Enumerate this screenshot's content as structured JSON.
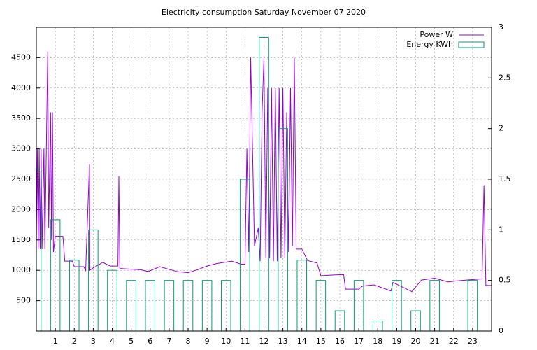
{
  "chart_data": {
    "type": "line_bar",
    "title": "Electricity consumption Saturday November 07 2020",
    "xlim": [
      0,
      24
    ],
    "xticks": [
      1,
      2,
      3,
      4,
      5,
      6,
      7,
      8,
      9,
      10,
      11,
      12,
      13,
      14,
      15,
      16,
      17,
      18,
      19,
      20,
      21,
      22,
      23
    ],
    "ylim": [
      0,
      5000
    ],
    "yticks": [
      500,
      1000,
      1500,
      2000,
      2500,
      3000,
      3500,
      4000,
      4500
    ],
    "y2lim": [
      0,
      3
    ],
    "y2ticks": [
      0,
      0.5,
      1,
      1.5,
      2,
      2.5,
      3
    ],
    "grid": true,
    "legend": "top-right",
    "series": [
      {
        "name": "Power W",
        "color": "#9400d3",
        "type": "line",
        "x": [
          0,
          0.05,
          0.1,
          0.15,
          0.2,
          0.25,
          0.3,
          0.4,
          0.45,
          0.6,
          0.65,
          0.75,
          0.8,
          0.85,
          0.9,
          1.0,
          1.4,
          1.5,
          1.9,
          2.0,
          2.5,
          2.6,
          2.8,
          2.82,
          3.0,
          3.5,
          3.9,
          4.3,
          4.35,
          4.4,
          5.5,
          5.9,
          6.5,
          7.4,
          8.0,
          8.5,
          9.0,
          9.5,
          10.3,
          10.8,
          11.0,
          11.1,
          11.2,
          11.3,
          11.5,
          11.7,
          11.8,
          11.9,
          12.0,
          12.1,
          12.2,
          12.3,
          12.4,
          12.5,
          12.6,
          12.7,
          12.8,
          12.9,
          13.0,
          13.1,
          13.2,
          13.3,
          13.4,
          13.5,
          13.6,
          13.7,
          14.0,
          14.3,
          14.8,
          15.0,
          15.5,
          16.2,
          16.3,
          17.0,
          17.2,
          17.8,
          18.7,
          18.8,
          19.2,
          19.8,
          20.3,
          21.0,
          21.7,
          22.3,
          23.5,
          23.6,
          23.65,
          23.7,
          24
        ],
        "values": [
          1400,
          3000,
          1350,
          3000,
          1350,
          3000,
          1350,
          3000,
          1350,
          4600,
          1700,
          3600,
          1500,
          3600,
          1300,
          1560,
          1560,
          1150,
          1150,
          1060,
          1060,
          1000,
          2750,
          1000,
          1040,
          1130,
          1070,
          1070,
          2550,
          1030,
          1010,
          980,
          1060,
          980,
          960,
          1010,
          1070,
          1110,
          1150,
          1100,
          1100,
          3000,
          1300,
          4500,
          1400,
          1700,
          1150,
          3600,
          4500,
          1200,
          4000,
          1200,
          4000,
          1150,
          4000,
          1150,
          4000,
          1200,
          4000,
          1200,
          3600,
          1300,
          4000,
          1400,
          4500,
          1350,
          1350,
          1160,
          1120,
          910,
          920,
          930,
          690,
          690,
          740,
          760,
          660,
          800,
          740,
          650,
          840,
          870,
          810,
          830,
          860,
          2400,
          1600,
          750,
          750
        ]
      },
      {
        "name": "Energy KWh",
        "color": "#009e73",
        "type": "bar",
        "axis": "y2",
        "x": [
          0,
          1,
          2,
          3,
          4,
          5,
          6,
          7,
          8,
          9,
          10,
          11,
          12,
          13,
          14,
          15,
          16,
          17,
          18,
          19,
          20,
          21,
          22,
          23
        ],
        "values": [
          1.6,
          1.1,
          0.7,
          1.0,
          0.6,
          0.5,
          0.5,
          0.5,
          0.5,
          0.5,
          0.5,
          1.5,
          2.9,
          2.0,
          0.7,
          0.5,
          0.2,
          0.5,
          0.1,
          0.5,
          0.2,
          0.5,
          null,
          0.5
        ]
      }
    ]
  }
}
